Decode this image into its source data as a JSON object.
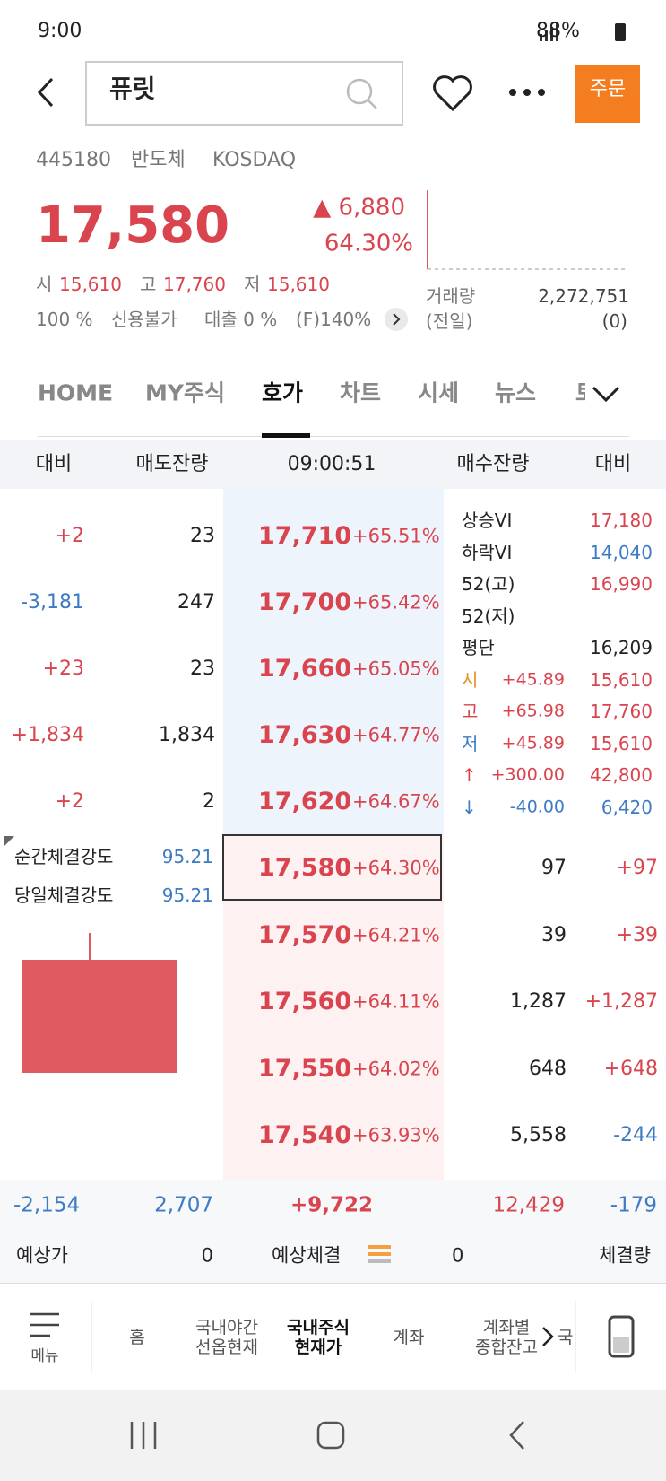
{
  "status": {
    "time": "9:00",
    "battery": "88%"
  },
  "header": {
    "search": "퓨릿",
    "order_button": "주문"
  },
  "stock": {
    "code": "445180",
    "sector": "반도체",
    "market": "KOSDAQ",
    "price": "17,580",
    "change": "▲ 6,880",
    "change_pct": "64.30%",
    "open_label": "시",
    "open": "15,610",
    "high_label": "고",
    "high": "17,760",
    "low_label": "저",
    "low": "15,610",
    "margin": "100 %",
    "credit": "신용불가",
    "loan": "대출 0 %",
    "f_rate": "(F)140%",
    "volume_label": "거래량",
    "volume": "2,272,751",
    "prev_label": "(전일)",
    "prev": "(0)"
  },
  "tabs": [
    "HOME",
    "MY주식",
    "호가",
    "차트",
    "시세",
    "뉴스",
    "토"
  ],
  "orderbook": {
    "header": [
      "대비",
      "매도잔량",
      "09:00:51",
      "매수잔량",
      "대비"
    ],
    "asks": [
      {
        "change": "+2",
        "qty": "23",
        "price": "17,710",
        "pct": "+65.51%"
      },
      {
        "change": "-3,181",
        "qty": "247",
        "price": "17,700",
        "pct": "+65.42%"
      },
      {
        "change": "+23",
        "qty": "23",
        "price": "17,660",
        "pct": "+65.05%"
      },
      {
        "change": "+1,834",
        "qty": "1,834",
        "price": "17,630",
        "pct": "+64.77%"
      },
      {
        "change": "+2",
        "qty": "2",
        "price": "17,620",
        "pct": "+64.67%"
      }
    ],
    "bids": [
      {
        "price": "17,580",
        "pct": "+64.30%",
        "qty": "97",
        "change": "+97"
      },
      {
        "price": "17,570",
        "pct": "+64.21%",
        "qty": "39",
        "change": "+39"
      },
      {
        "price": "17,560",
        "pct": "+64.11%",
        "qty": "1,287",
        "change": "+1,287"
      },
      {
        "price": "17,550",
        "pct": "+64.02%",
        "qty": "648",
        "change": "+648"
      },
      {
        "price": "17,540",
        "pct": "+63.93%",
        "qty": "5,558",
        "change": "-244"
      }
    ],
    "info": [
      {
        "label": "상승VI",
        "value": "17,180"
      },
      {
        "label": "하락VI",
        "value": "14,040"
      },
      {
        "label": "52(고)",
        "value": "16,990"
      },
      {
        "label": "52(저)"
      },
      {
        "label": "평단",
        "value": "16,209"
      },
      {
        "label": "시",
        "pct": "+45.89",
        "value": "15,610"
      },
      {
        "label": "고",
        "pct": "+65.98",
        "value": "17,760"
      },
      {
        "label": "저",
        "pct": "+45.89",
        "value": "15,610"
      },
      {
        "label": "↑",
        "pct": "+300.00",
        "value": "42,800"
      },
      {
        "label": "↓",
        "pct": "-40.00",
        "value": "6,420"
      }
    ],
    "strength": [
      {
        "label": "순간체결강도",
        "value": "95.21"
      },
      {
        "label": "당일체결강도",
        "value": "95.21"
      }
    ],
    "totals": [
      "-2,154",
      "2,707",
      "+9,722",
      "12,429",
      "-179"
    ],
    "expected": {
      "price_label": "예상가",
      "price": "0",
      "exec_label": "예상체결",
      "exec": "0",
      "volume_label": "체결량"
    }
  },
  "bottom_nav": [
    "메뉴",
    "홈",
    "국내야간\n선옵현재",
    "국내주식\n현재가",
    "계좌",
    "계좌별\n종합잔고",
    "국내"
  ]
}
